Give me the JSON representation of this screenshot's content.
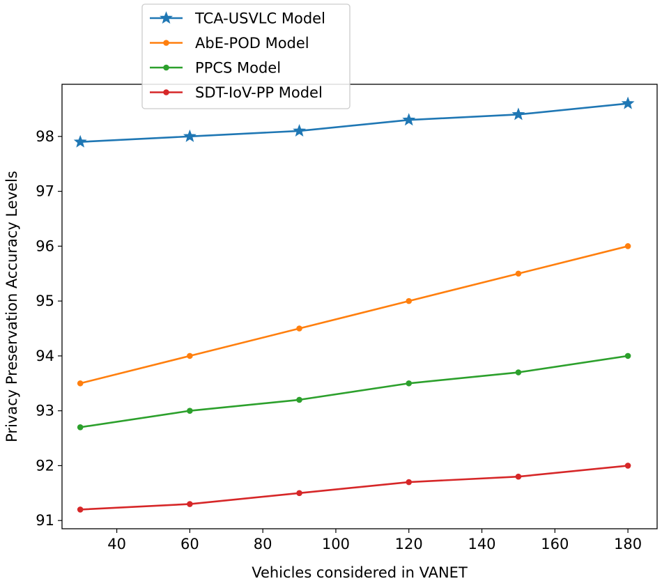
{
  "chart_data": {
    "type": "line",
    "title": "",
    "xlabel": "Vehicles considered in VANET",
    "ylabel": "Privacy Preservation Accuracy Levels",
    "x": [
      30,
      60,
      90,
      120,
      150,
      180
    ],
    "xlim": [
      25,
      188
    ],
    "ylim": [
      90.85,
      98.95
    ],
    "xticks": [
      40,
      60,
      80,
      100,
      120,
      140,
      160,
      180
    ],
    "yticks": [
      91,
      92,
      93,
      94,
      95,
      96,
      97,
      98
    ],
    "grid": false,
    "legend_position": "top-left",
    "series": [
      {
        "name": "TCA-USVLC Model",
        "color": "#1f77b4",
        "marker": "star",
        "values": [
          97.9,
          98.0,
          98.1,
          98.3,
          98.4,
          98.6
        ]
      },
      {
        "name": "AbE-POD Model",
        "color": "#ff7f0e",
        "marker": "circle",
        "values": [
          93.5,
          94.0,
          94.5,
          95.0,
          95.5,
          96.0
        ]
      },
      {
        "name": "PPCS Model",
        "color": "#2ca02c",
        "marker": "circle",
        "values": [
          92.7,
          93.0,
          93.2,
          93.5,
          93.7,
          94.0
        ]
      },
      {
        "name": "SDT-IoV-PP Model",
        "color": "#d62728",
        "marker": "circle",
        "values": [
          91.2,
          91.3,
          91.5,
          91.7,
          91.8,
          92.0
        ]
      }
    ]
  }
}
